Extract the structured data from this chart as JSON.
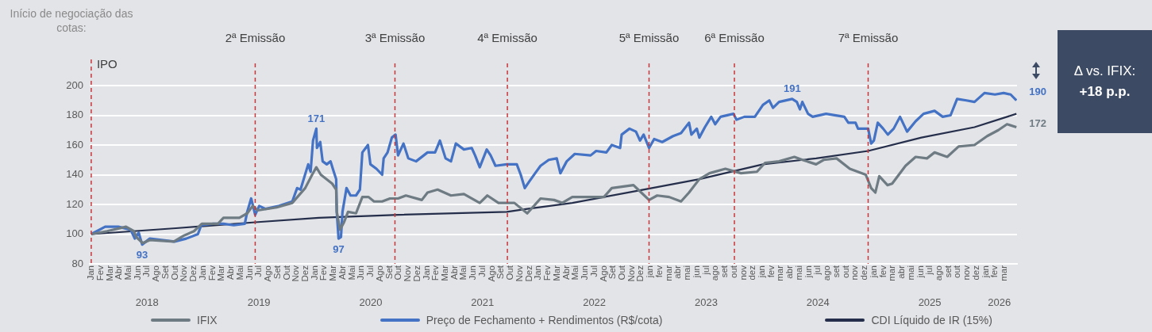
{
  "chart_data": {
    "type": "line",
    "annotations": [
      "Início de negociação das cotas:",
      "Δ vs. IFIX:",
      "+18 p.p."
    ],
    "xlim": [
      "2017-12-27",
      "2026-04-12"
    ],
    "xticks": [
      {
        "value": "2018-01",
        "label": "Jan"
      },
      {
        "value": "2018-02",
        "label": "Fev"
      },
      {
        "value": "2018-03",
        "label": "Mar"
      },
      {
        "value": "2018-04",
        "label": "Abr"
      },
      {
        "value": "2018-05",
        "label": "Mai"
      },
      {
        "value": "2018-06",
        "label": "Jun"
      },
      {
        "value": "2018-07",
        "label": "Jul"
      },
      {
        "value": "2018-08",
        "label": "Ago"
      },
      {
        "value": "2018-09",
        "label": "Set"
      },
      {
        "value": "2018-10",
        "label": "Out"
      },
      {
        "value": "2018-11",
        "label": "Nov"
      },
      {
        "value": "2018-12",
        "label": "Dez"
      },
      {
        "value": "2019-01",
        "label": "Jan"
      },
      {
        "value": "2019-02",
        "label": "Fev"
      },
      {
        "value": "2019-03",
        "label": "Mar"
      },
      {
        "value": "2019-04",
        "label": "Abr"
      },
      {
        "value": "2019-05",
        "label": "Mai"
      },
      {
        "value": "2019-06",
        "label": "Jun"
      },
      {
        "value": "2019-07",
        "label": "Jul"
      },
      {
        "value": "2019-08",
        "label": "Ago"
      },
      {
        "value": "2019-09",
        "label": "Set"
      },
      {
        "value": "2019-10",
        "label": "Out"
      },
      {
        "value": "2019-11",
        "label": "Nov"
      },
      {
        "value": "2019-12",
        "label": "Dez"
      },
      {
        "value": "2020-01",
        "label": "Jan"
      },
      {
        "value": "2020-02",
        "label": "Fev"
      },
      {
        "value": "2020-03",
        "label": "Mar"
      },
      {
        "value": "2020-04",
        "label": "Abr"
      },
      {
        "value": "2020-05",
        "label": "Mai"
      },
      {
        "value": "2020-06",
        "label": "Jun"
      },
      {
        "value": "2020-07",
        "label": "Jul"
      },
      {
        "value": "2020-08",
        "label": "Ago"
      },
      {
        "value": "2020-09",
        "label": "Set"
      },
      {
        "value": "2020-10",
        "label": "Out"
      },
      {
        "value": "2020-11",
        "label": "Nov"
      },
      {
        "value": "2020-12",
        "label": "Dez"
      },
      {
        "value": "2021-01",
        "label": "Jan"
      },
      {
        "value": "2021-02",
        "label": "Fev"
      },
      {
        "value": "2021-03",
        "label": "Mar"
      },
      {
        "value": "2021-04",
        "label": "Abr"
      },
      {
        "value": "2021-05",
        "label": "Mai"
      },
      {
        "value": "2021-06",
        "label": "Jun"
      },
      {
        "value": "2021-07",
        "label": "Jul"
      },
      {
        "value": "2021-08",
        "label": "Ago"
      },
      {
        "value": "2021-09",
        "label": "Set"
      },
      {
        "value": "2021-10",
        "label": "Out"
      },
      {
        "value": "2021-11",
        "label": "Nov"
      },
      {
        "value": "2021-12",
        "label": "Dez"
      },
      {
        "value": "2022-01",
        "label": "Jan"
      },
      {
        "value": "2022-02",
        "label": "Fev"
      },
      {
        "value": "2022-03",
        "label": "Mar"
      },
      {
        "value": "2022-04",
        "label": "Abr"
      },
      {
        "value": "2022-05",
        "label": "Mai"
      },
      {
        "value": "2022-06",
        "label": "Jun"
      },
      {
        "value": "2022-07",
        "label": "Jul"
      },
      {
        "value": "2022-08",
        "label": "Ago"
      },
      {
        "value": "2022-09",
        "label": "Set"
      },
      {
        "value": "2022-10",
        "label": "Out"
      },
      {
        "value": "2022-11",
        "label": "Nov"
      },
      {
        "value": "2022-12",
        "label": "Dez"
      },
      {
        "value": "2023-01",
        "label": "jan"
      },
      {
        "value": "2023-02",
        "label": "fev"
      },
      {
        "value": "2023-03",
        "label": "mar"
      },
      {
        "value": "2023-04",
        "label": "abr"
      },
      {
        "value": "2023-05",
        "label": "mai"
      },
      {
        "value": "2023-06",
        "label": "jun"
      },
      {
        "value": "2023-07",
        "label": "jul"
      },
      {
        "value": "2023-08",
        "label": "ago"
      },
      {
        "value": "2023-09",
        "label": "set"
      },
      {
        "value": "2023-10",
        "label": "out"
      },
      {
        "value": "2023-11",
        "label": "nov"
      },
      {
        "value": "2023-12",
        "label": "dez"
      },
      {
        "value": "2024-01",
        "label": "jan"
      },
      {
        "value": "2024-02",
        "label": "fev"
      },
      {
        "value": "2024-03",
        "label": "mar"
      },
      {
        "value": "2024-04",
        "label": "abr"
      },
      {
        "value": "2024-05",
        "label": "mai"
      },
      {
        "value": "2024-06",
        "label": "jun"
      },
      {
        "value": "2024-07",
        "label": "jul"
      },
      {
        "value": "2024-08",
        "label": "ago"
      },
      {
        "value": "2024-09",
        "label": "set"
      },
      {
        "value": "2024-10",
        "label": "out"
      },
      {
        "value": "2024-11",
        "label": "nov"
      },
      {
        "value": "2024-12",
        "label": "dez"
      },
      {
        "value": "2025-01",
        "label": "jan"
      },
      {
        "value": "2025-02",
        "label": "fev"
      },
      {
        "value": "2025-03",
        "label": "mar"
      },
      {
        "value": "2025-04",
        "label": "abr"
      },
      {
        "value": "2025-05",
        "label": "mai"
      },
      {
        "value": "2025-06",
        "label": "jun"
      },
      {
        "value": "2025-07",
        "label": "jul"
      },
      {
        "value": "2025-08",
        "label": "ago"
      },
      {
        "value": "2025-09",
        "label": "set"
      },
      {
        "value": "2025-10",
        "label": "out"
      },
      {
        "value": "2025-11",
        "label": "nov"
      },
      {
        "value": "2025-12",
        "label": "dez"
      },
      {
        "value": "2026-01",
        "label": "jan"
      },
      {
        "value": "2026-02",
        "label": "fev"
      },
      {
        "value": "2026-03",
        "label": "mar"
      }
    ],
    "x2lim": [
      "2017-12-27",
      "2026-04-12"
    ],
    "x2ticks": [
      {
        "value": "2018-07",
        "label": "2018"
      },
      {
        "value": "2019-07",
        "label": "2019"
      },
      {
        "value": "2020-07",
        "label": "2020"
      },
      {
        "value": "2021-07",
        "label": "2021"
      },
      {
        "value": "2022-07",
        "label": "2022"
      },
      {
        "value": "2023-07",
        "label": "2023"
      },
      {
        "value": "2024-07",
        "label": "2024"
      },
      {
        "value": "2025-07",
        "label": "2025"
      },
      {
        "value": "2026-02-14",
        "label": "2026"
      }
    ],
    "ylim": [
      80,
      200
    ],
    "yticks": [
      80,
      100,
      120,
      140,
      160,
      180,
      200
    ],
    "grid": "y",
    "legend": "bottom",
    "ref_lines": [
      {
        "axis": "x",
        "value": "2018-01-01",
        "label": "IPO",
        "color": "#c8373b",
        "line_style": "dashed"
      },
      {
        "axis": "x",
        "value": "2019-06-19",
        "label": "2ª Emissão",
        "color": "#c8373b",
        "line_style": "dashed"
      },
      {
        "axis": "x",
        "value": "2020-09-19",
        "label": "3ª Emissão",
        "color": "#c8373b",
        "line_style": "dashed"
      },
      {
        "axis": "x",
        "value": "2021-09-21",
        "label": "4ª Emissão",
        "color": "#c8373b",
        "line_style": "dashed"
      },
      {
        "axis": "x",
        "value": "2022-12-28",
        "label": "5ª Emissão",
        "color": "#c8373b",
        "line_style": "dashed"
      },
      {
        "axis": "x",
        "value": "2023-10-02",
        "label": "6ª Emissão",
        "color": "#c8373b",
        "line_style": "dashed"
      },
      {
        "axis": "x",
        "value": "2024-12-13",
        "label": "7ª Emissão",
        "color": "#c8373b",
        "line_style": "dashed"
      }
    ],
    "series": [
      {
        "name": "IFIX",
        "color": "#6e7b83",
        "x": [
          "2018-01-01",
          "2018-02-21",
          "2018-04-23",
          "2018-05-19",
          "2018-05-27",
          "2018-06-17",
          "2018-07-10",
          "2018-09-27",
          "2018-10-30",
          "2018-12-02",
          "2018-12-28",
          "2019-02-18",
          "2019-03-07",
          "2019-04-28",
          "2019-05-24",
          "2019-06-11",
          "2019-06-27",
          "2019-08-29",
          "2019-10-19",
          "2019-11-30",
          "2019-12-23",
          "2020-01-06",
          "2020-01-21",
          "2020-02-26",
          "2020-03-10",
          "2020-03-12",
          "2020-03-23",
          "2020-04-05",
          "2020-04-18",
          "2020-05-14",
          "2020-06-04",
          "2020-06-24",
          "2020-07-12",
          "2020-08-08",
          "2020-09-03",
          "2020-09-29",
          "2020-10-25",
          "2020-12-16",
          "2021-01-04",
          "2021-02-06",
          "2021-03-20",
          "2021-05-01",
          "2021-06-22",
          "2021-07-17",
          "2021-08-23",
          "2021-10-14",
          "2021-11-25",
          "2022-01-08",
          "2022-02-20",
          "2022-03-18",
          "2022-04-20",
          "2022-06-11",
          "2022-08-02",
          "2022-08-28",
          "2022-11-07",
          "2022-11-22",
          "2022-12-28",
          "2023-01-24",
          "2023-03-02",
          "2023-04-10",
          "2023-05-06",
          "2023-06-09",
          "2023-07-12",
          "2023-09-03",
          "2023-10-24",
          "2023-12-15",
          "2024-01-11",
          "2024-02-25",
          "2024-04-15",
          "2024-05-11",
          "2024-06-25",
          "2024-07-20",
          "2024-09-01",
          "2024-10-14",
          "2024-12-05",
          "2024-12-23",
          "2025-01-06",
          "2025-01-19",
          "2025-02-14",
          "2025-02-28",
          "2025-04-13",
          "2025-05-16",
          "2025-06-22",
          "2025-07-17",
          "2025-08-28",
          "2025-10-04",
          "2025-11-25",
          "2026-01-06",
          "2026-02-11",
          "2026-03-10",
          "2026-04-10"
        ],
        "values": [
          100,
          102,
          105,
          102,
          98,
          94,
          96,
          95,
          99,
          102,
          107,
          107,
          111,
          111,
          114,
          119,
          116,
          118,
          121,
          131,
          140,
          145,
          140,
          134,
          130,
          115,
          103,
          108,
          115,
          114,
          125,
          125,
          122,
          122,
          124,
          124,
          126,
          123,
          128,
          130,
          126,
          127,
          121,
          126,
          121,
          121,
          114,
          124,
          123,
          121,
          125,
          125,
          125,
          131,
          133,
          130,
          123,
          126,
          125,
          122,
          128,
          137,
          141,
          144,
          141,
          142,
          148,
          149,
          152,
          150,
          147,
          150,
          151,
          144,
          140,
          131,
          128,
          139,
          133,
          134,
          146,
          152,
          151,
          155,
          152,
          159,
          160,
          166,
          170,
          174,
          172
        ],
        "value_labels": [
          null,
          null,
          null,
          null,
          null,
          null,
          null,
          null,
          null,
          null,
          null,
          null,
          null,
          null,
          null,
          null,
          null,
          null,
          null,
          null,
          null,
          null,
          null,
          null,
          null,
          null,
          null,
          null,
          null,
          null,
          null,
          null,
          null,
          null,
          null,
          null,
          null,
          null,
          null,
          null,
          null,
          null,
          null,
          null,
          null,
          null,
          null,
          null,
          null,
          null,
          null,
          null,
          null,
          null,
          null,
          null,
          null,
          null,
          null,
          null,
          null,
          null,
          null,
          null,
          null,
          null,
          null,
          null,
          null,
          null,
          null,
          null,
          null,
          null,
          null,
          null,
          null,
          null,
          null,
          null,
          null,
          null,
          null,
          null,
          null,
          null,
          null,
          null,
          null,
          null,
          "172"
        ]
      },
      {
        "name": "Preço de Fechamento + Rendimentos (R$/cota)",
        "color": "#4472c4",
        "x": [
          "2018-01-01",
          "2018-02-15",
          "2018-03-29",
          "2018-05-08",
          "2018-05-22",
          "2018-06-04",
          "2018-06-15",
          "2018-07-10",
          "2018-09-29",
          "2018-11-07",
          "2018-12-15",
          "2018-12-26",
          "2019-02-04",
          "2019-03-07",
          "2019-04-10",
          "2019-05-16",
          "2019-05-24",
          "2019-06-06",
          "2019-06-19",
          "2019-07-02",
          "2019-07-23",
          "2019-09-06",
          "2019-10-19",
          "2019-11-04",
          "2019-11-15",
          "2019-11-28",
          "2019-12-10",
          "2019-12-18",
          "2019-12-26",
          "2020-01-06",
          "2020-01-08",
          "2020-01-19",
          "2020-01-27",
          "2020-02-09",
          "2020-02-21",
          "2020-02-28",
          "2020-03-10",
          "2020-03-12",
          "2020-03-18",
          "2020-03-26",
          "2020-03-31",
          "2020-04-13",
          "2020-04-26",
          "2020-05-14",
          "2020-05-27",
          "2020-06-04",
          "2020-06-22",
          "2020-06-30",
          "2020-07-20",
          "2020-08-08",
          "2020-08-13",
          "2020-08-26",
          "2020-09-09",
          "2020-09-21",
          "2020-09-29",
          "2020-10-17",
          "2020-11-02",
          "2020-11-27",
          "2021-01-04",
          "2021-01-29",
          "2021-02-13",
          "2021-03-02",
          "2021-03-20",
          "2021-04-05",
          "2021-05-01",
          "2021-05-27",
          "2021-06-07",
          "2021-06-22",
          "2021-07-15",
          "2021-07-28",
          "2021-08-13",
          "2021-09-19",
          "2021-10-22",
          "2021-11-04",
          "2021-11-17",
          "2021-11-30",
          "2021-12-21",
          "2022-01-08",
          "2022-02-04",
          "2022-02-28",
          "2022-03-12",
          "2022-04-02",
          "2022-04-28",
          "2022-06-19",
          "2022-07-07",
          "2022-08-10",
          "2022-08-28",
          "2022-09-24",
          "2022-09-29",
          "2022-10-25",
          "2022-11-15",
          "2022-11-28",
          "2022-12-10",
          "2022-12-28",
          "2023-01-14",
          "2023-02-09",
          "2023-03-15",
          "2023-04-10",
          "2023-05-06",
          "2023-05-14",
          "2023-06-01",
          "2023-06-09",
          "2023-06-27",
          "2023-07-18",
          "2023-07-31",
          "2023-08-18",
          "2023-09-29",
          "2023-10-09",
          "2023-11-04",
          "2023-12-08",
          "2024-01-04",
          "2024-01-25",
          "2024-02-06",
          "2024-02-25",
          "2024-04-08",
          "2024-04-23",
          "2024-05-03",
          "2024-05-11",
          "2024-05-30",
          "2024-06-14",
          "2024-07-28",
          "2024-09-26",
          "2024-10-09",
          "2024-11-02",
          "2024-11-10",
          "2024-12-13",
          "2024-12-23",
          "2025-01-01",
          "2025-01-14",
          "2025-02-01",
          "2025-02-15",
          "2025-03-05",
          "2025-03-26",
          "2025-04-18",
          "2025-05-16",
          "2025-06-11",
          "2025-07-17",
          "2025-08-13",
          "2025-09-08",
          "2025-09-29",
          "2025-10-30",
          "2025-11-25",
          "2025-12-28",
          "2026-02-01",
          "2026-02-27",
          "2026-03-22",
          "2026-04-10"
        ],
        "values": [
          100,
          105,
          105,
          103,
          97,
          101,
          93,
          97,
          95,
          97,
          100,
          106,
          107,
          107,
          106,
          107,
          115,
          124,
          113,
          119,
          117,
          119,
          122,
          131,
          130,
          139,
          147,
          142,
          163,
          171,
          158,
          162,
          149,
          147,
          149,
          144,
          137,
          115,
          97,
          98,
          115,
          131,
          126,
          126,
          130,
          155,
          160,
          147,
          144,
          140,
          151,
          155,
          165,
          167,
          153,
          161,
          151,
          149,
          155,
          155,
          163,
          151,
          149,
          161,
          157,
          158,
          153,
          145,
          157,
          153,
          146,
          147,
          147,
          140,
          131,
          135,
          141,
          146,
          150,
          151,
          141,
          149,
          154,
          153,
          156,
          155,
          160,
          158,
          167,
          171,
          169,
          163,
          167,
          158,
          164,
          162,
          166,
          168,
          175,
          167,
          171,
          165,
          172,
          179,
          174,
          179,
          181,
          177,
          179,
          179,
          187,
          190,
          185,
          189,
          191,
          189,
          184,
          189,
          181,
          179,
          181,
          179,
          175,
          175,
          171,
          171,
          161,
          163,
          175,
          171,
          167,
          171,
          179,
          169,
          176,
          181,
          183,
          179,
          180,
          191,
          190,
          189,
          195,
          194,
          195,
          194,
          190
        ],
        "value_labels": [
          null,
          null,
          null,
          null,
          null,
          null,
          "93",
          null,
          null,
          null,
          null,
          null,
          null,
          null,
          null,
          null,
          null,
          null,
          null,
          null,
          null,
          null,
          null,
          null,
          null,
          null,
          null,
          null,
          null,
          "171",
          null,
          null,
          null,
          null,
          null,
          null,
          null,
          null,
          "97",
          null,
          null,
          null,
          null,
          null,
          null,
          null,
          null,
          null,
          null,
          null,
          null,
          null,
          null,
          null,
          null,
          null,
          null,
          null,
          null,
          null,
          null,
          null,
          null,
          null,
          null,
          null,
          null,
          null,
          null,
          null,
          null,
          null,
          null,
          null,
          null,
          null,
          null,
          null,
          null,
          null,
          null,
          null,
          null,
          null,
          null,
          null,
          null,
          null,
          null,
          null,
          null,
          null,
          null,
          null,
          null,
          null,
          null,
          null,
          null,
          null,
          null,
          null,
          null,
          null,
          null,
          null,
          null,
          null,
          null,
          null,
          null,
          null,
          null,
          null,
          "191",
          null,
          null,
          null,
          null,
          null,
          null,
          null,
          null,
          null,
          null,
          null,
          null,
          null,
          null,
          null,
          null,
          null,
          null,
          null,
          null,
          null,
          null,
          null,
          null,
          null,
          null,
          null,
          null,
          null,
          null,
          null,
          "190"
        ]
      },
      {
        "name": "CDI Líquido de IR (15%)",
        "color": "#252f4b",
        "x": [
          "2018-01-01",
          "2018-10-04",
          "2019-06-19",
          "2020-01-14",
          "2020-09-29",
          "2021-09-19",
          "2021-11-25",
          "2022-04-20",
          "2022-11-15",
          "2023-06-09",
          "2024-01-04",
          "2024-06-25",
          "2024-12-13",
          "2025-06-04",
          "2025-11-25",
          "2026-04-10"
        ],
        "values": [
          100,
          104,
          108,
          111,
          113,
          115,
          117,
          121,
          129,
          137,
          147,
          151,
          156,
          165,
          172,
          181
        ]
      }
    ]
  }
}
